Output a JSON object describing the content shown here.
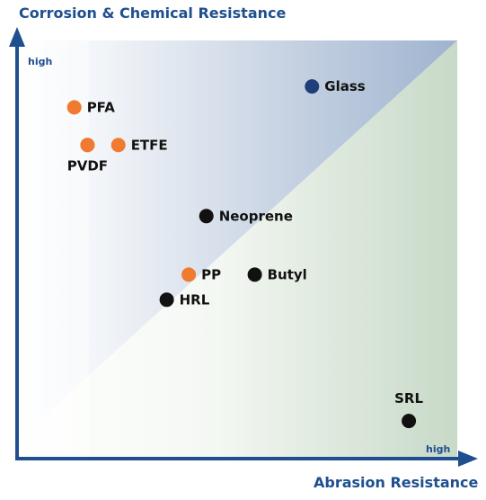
{
  "chart_data": {
    "type": "scatter",
    "title": "",
    "ylabel": "Corrosion & Chemical Resistance",
    "xlabel": "Abrasion Resistance",
    "y_end_label": "high",
    "x_end_label": "high",
    "xlim": [
      0,
      10
    ],
    "ylim": [
      0,
      10
    ],
    "grid": false,
    "legend": "none",
    "colors": {
      "axis": "#1f4f8f",
      "title": "#1f4f8f",
      "region_upper": "#9fb3cf",
      "region_lower": "#c9dbc9",
      "orange": "#f07a30",
      "black": "#111111",
      "navy": "#1f3f7a"
    },
    "points": [
      {
        "label": "PFA",
        "x": 1.3,
        "y": 8.4,
        "color": "orange",
        "label_pos": "right"
      },
      {
        "label": "",
        "x": 1.6,
        "y": 7.5,
        "color": "orange",
        "label_pos": "none"
      },
      {
        "label": "ETFE",
        "x": 2.3,
        "y": 7.5,
        "color": "orange",
        "label_pos": "right"
      },
      {
        "label": "PVDF",
        "x": 1.6,
        "y": 7.5,
        "color": "orange",
        "label_pos": "below-left"
      },
      {
        "label": "Glass",
        "x": 6.7,
        "y": 8.9,
        "color": "navy",
        "label_pos": "right"
      },
      {
        "label": "Neoprene",
        "x": 4.3,
        "y": 5.8,
        "color": "black",
        "label_pos": "right"
      },
      {
        "label": "PP",
        "x": 3.9,
        "y": 4.4,
        "color": "orange",
        "label_pos": "right"
      },
      {
        "label": "Butyl",
        "x": 5.4,
        "y": 4.4,
        "color": "black",
        "label_pos": "right"
      },
      {
        "label": "HRL",
        "x": 3.4,
        "y": 3.8,
        "color": "black",
        "label_pos": "right"
      },
      {
        "label": "SRL",
        "x": 8.9,
        "y": 0.9,
        "color": "black",
        "label_pos": "above"
      }
    ]
  }
}
